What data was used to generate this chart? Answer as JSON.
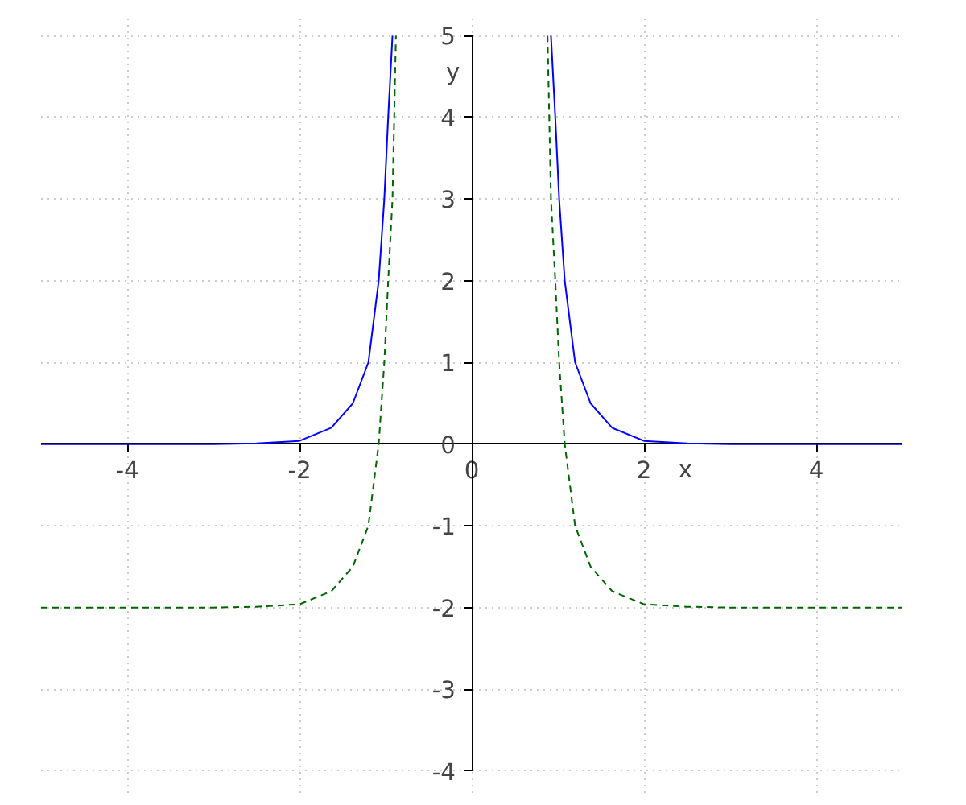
{
  "chart_data": {
    "type": "line",
    "xlabel": "x",
    "ylabel": "y",
    "xlim": [
      -5,
      5
    ],
    "ylim": [
      -4,
      5
    ],
    "xticks": [
      -4,
      -2,
      0,
      2,
      4
    ],
    "yticks": [
      -4,
      -3,
      -2,
      -1,
      0,
      1,
      2,
      3,
      4,
      5
    ],
    "grid": true,
    "series": [
      {
        "color": "#0000ff",
        "line_style": "solid",
        "x": [
          -5,
          -4,
          -3,
          -2.5,
          -2,
          -1.63,
          -1.38,
          -1.2,
          -1.08,
          -1.015,
          -0.97,
          -0.92,
          0,
          0.92,
          0.97,
          1.015,
          1.08,
          1.2,
          1.38,
          1.63,
          2,
          2.5,
          3,
          4,
          5
        ],
        "values": [
          0,
          0,
          0,
          0.01,
          0.04,
          0.2,
          0.5,
          1,
          2,
          3,
          4,
          5,
          null,
          5,
          4,
          3,
          2,
          1,
          0.5,
          0.2,
          0.04,
          0.01,
          0,
          0,
          0
        ]
      },
      {
        "color": "#006400",
        "line_style": "dashed",
        "x": [
          -5,
          -4,
          -3,
          -2.5,
          -2,
          -1.63,
          -1.38,
          -1.2,
          -1.08,
          -1.015,
          -0.97,
          -0.92,
          -0.88,
          0,
          0.88,
          0.92,
          0.97,
          1.015,
          1.08,
          1.2,
          1.38,
          1.63,
          2,
          2.5,
          3,
          4,
          5
        ],
        "values": [
          -2,
          -2,
          -2,
          -1.99,
          -1.96,
          -1.8,
          -1.5,
          -1,
          0,
          1,
          2,
          3,
          5,
          null,
          5,
          3,
          2,
          1,
          0,
          -1,
          -1.5,
          -1.8,
          -1.96,
          -1.99,
          -2,
          -2,
          -2
        ]
      }
    ]
  }
}
